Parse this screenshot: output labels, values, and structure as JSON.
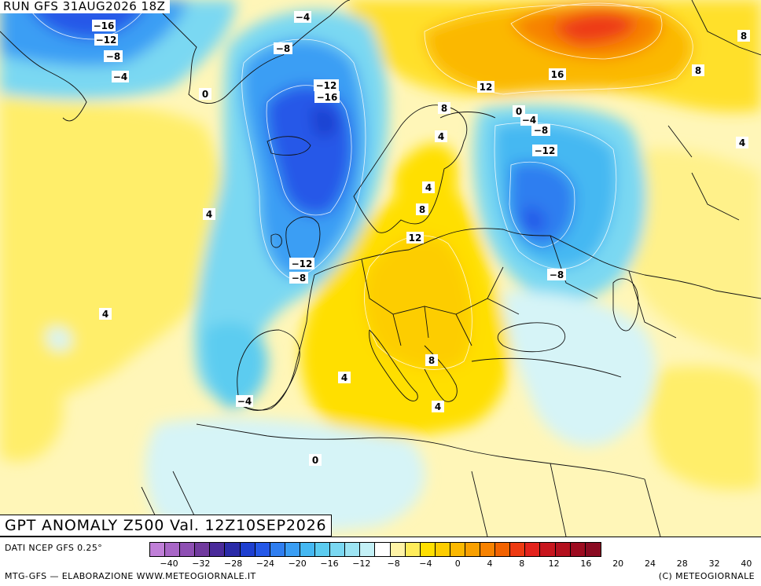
{
  "header": {
    "run": "RUN GFS 31AUG2026 18Z"
  },
  "title": "GPT ANOMALY Z500 Val. 12Z10SEP2026",
  "source": "DATI NCEP GFS 0.25°",
  "footer": {
    "left": "MTG-GFS — ELABORAZIONE WWW.METEOGIORNALE.IT",
    "right": "(C) METEOGIORNALE"
  },
  "colorbar": {
    "colors": [
      "#c07fd8",
      "#a866c6",
      "#8e4fb3",
      "#713a9e",
      "#4a2a9a",
      "#2a2aa8",
      "#1e3fd0",
      "#2558e8",
      "#2f7ef0",
      "#3a9ef4",
      "#45b8f2",
      "#5cccf0",
      "#7ad8f2",
      "#9de4f3",
      "#c3f0f6",
      "#ffffff",
      "#fff3a6",
      "#ffec5a",
      "#ffdf00",
      "#fdcd00",
      "#fbb800",
      "#f9a000",
      "#f78200",
      "#f26200",
      "#ee3a12",
      "#e3221c",
      "#c8161e",
      "#b3101e",
      "#9d0b20",
      "#8a0a22"
    ],
    "labels": [
      "−40",
      "−32",
      "−28",
      "−24",
      "−20",
      "−16",
      "−12",
      "−8",
      "−4",
      "0",
      "4",
      "8",
      "12",
      "16",
      "20",
      "24",
      "28",
      "32",
      "40"
    ]
  },
  "contour_labels": [
    {
      "text": "−4"
    },
    {
      "text": "−16"
    },
    {
      "text": "−12"
    },
    {
      "text": "−8"
    },
    {
      "text": "−4"
    },
    {
      "text": "−8"
    },
    {
      "text": "0"
    },
    {
      "text": "−12"
    },
    {
      "text": "−16"
    },
    {
      "text": "8"
    },
    {
      "text": "16"
    },
    {
      "text": "12"
    },
    {
      "text": "8"
    },
    {
      "text": "8"
    },
    {
      "text": "4"
    },
    {
      "text": "0"
    },
    {
      "text": "−4"
    },
    {
      "text": "−8"
    },
    {
      "text": "−12"
    },
    {
      "text": "4"
    },
    {
      "text": "4"
    },
    {
      "text": "8"
    },
    {
      "text": "12"
    },
    {
      "text": "4"
    },
    {
      "text": "−12"
    },
    {
      "text": "−8"
    },
    {
      "text": "−8"
    },
    {
      "text": "4"
    },
    {
      "text": "4"
    },
    {
      "text": "8"
    },
    {
      "text": "−4"
    },
    {
      "text": "4"
    },
    {
      "text": "0"
    }
  ]
}
